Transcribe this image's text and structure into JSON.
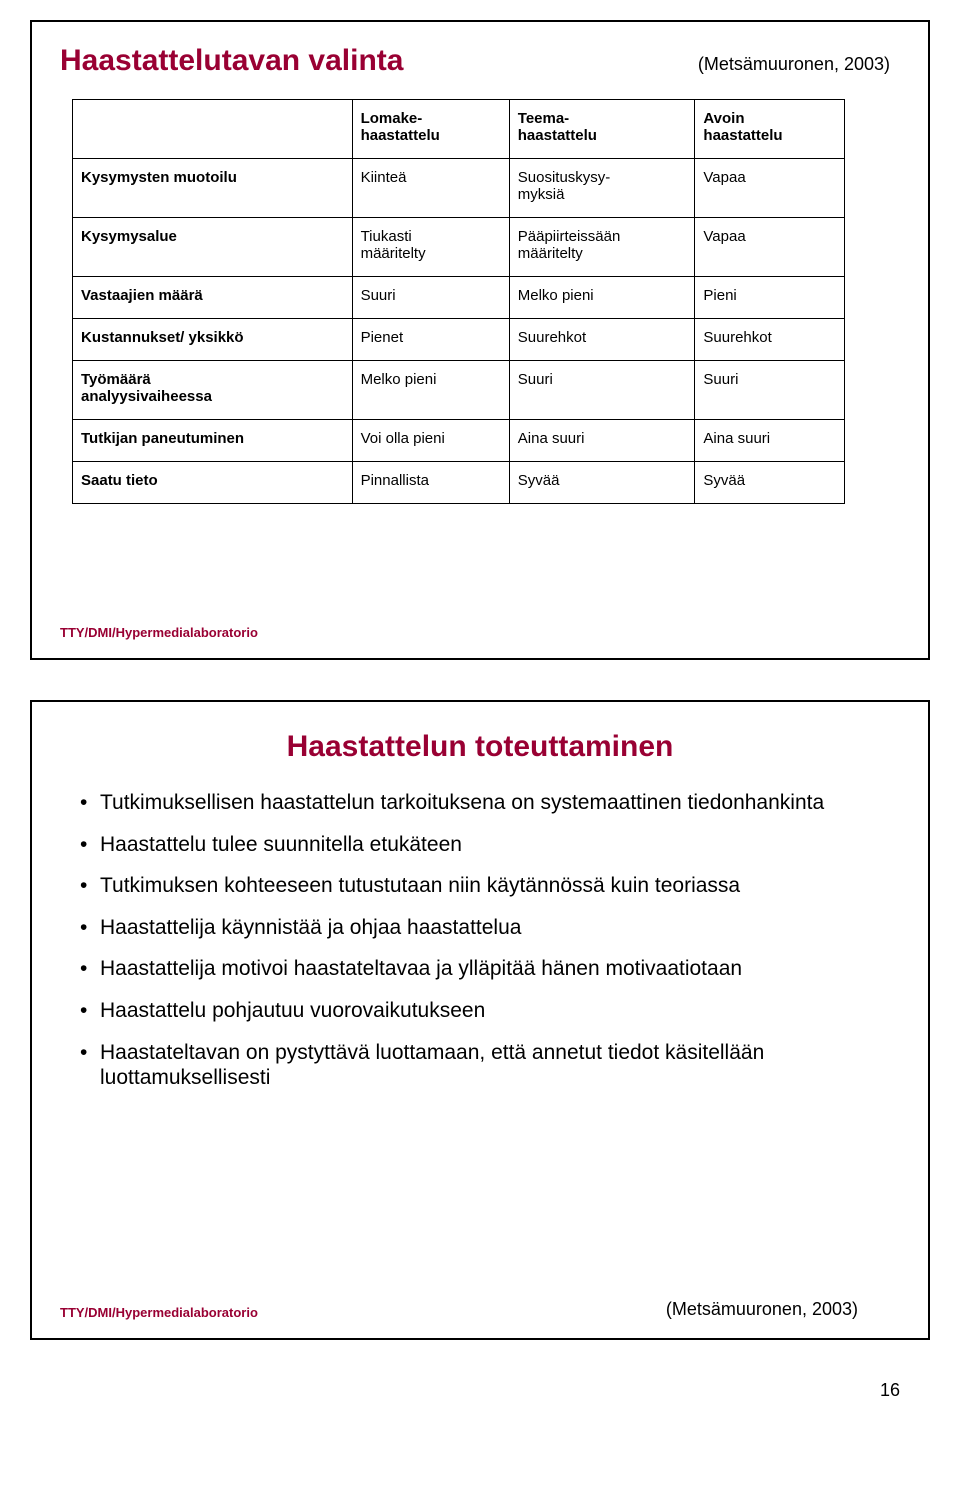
{
  "slide1": {
    "title": "Haastattelutavan valinta",
    "cite": "(Metsämuuronen, 2003)",
    "footer": "TTY/DMI/Hypermedialaboratorio",
    "table": {
      "head": [
        "",
        "Lomake-\nhaastattelu",
        "Teema-\nhaastattelu",
        "Avoin\nhaastattelu"
      ],
      "rows": [
        [
          "Kysymysten muotoilu",
          "Kiinteä",
          "Suosituskysy-\nmyksiä",
          "Vapaa"
        ],
        [
          "Kysymysalue",
          "Tiukasti\nmääritelty",
          "Pääpiirteissään\nmääritelty",
          "Vapaa"
        ],
        [
          "Vastaajien määrä",
          "Suuri",
          "Melko pieni",
          "Pieni"
        ],
        [
          "Kustannukset/ yksikkö",
          "Pienet",
          "Suurehkot",
          "Suurehkot"
        ],
        [
          "Työmäärä\nanalyysivaiheessa",
          "Melko pieni",
          "Suuri",
          "Suuri"
        ],
        [
          "Tutkijan paneutuminen",
          "Voi olla pieni",
          "Aina suuri",
          "Aina suuri"
        ],
        [
          "Saatu tieto",
          "Pinnallista",
          "Syvää",
          "Syvää"
        ]
      ]
    }
  },
  "slide2": {
    "title": "Haastattelun toteuttaminen",
    "footer": "TTY/DMI/Hypermedialaboratorio",
    "cite": "(Metsämuuronen, 2003)",
    "bullets": [
      "Tutkimuksellisen haastattelun tarkoituksena on systemaattinen tiedonhankinta",
      "Haastattelu tulee suunnitella etukäteen",
      "Tutkimuksen kohteeseen tutustutaan niin käytännössä kuin teoriassa",
      "Haastattelija käynnistää ja ohjaa haastattelua",
      "Haastattelija motivoi haastateltavaa ja ylläpitää hänen motivaatiotaan",
      "Haastattelu pohjautuu vuorovaikutukseen",
      "Haastateltavan on pystyttävä luottamaan, että annetut tiedot käsitellään luottamuksellisesti"
    ]
  },
  "pagenum": "16",
  "colors": {
    "accent": "#990033",
    "border": "#000000",
    "bg": "#ffffff"
  }
}
